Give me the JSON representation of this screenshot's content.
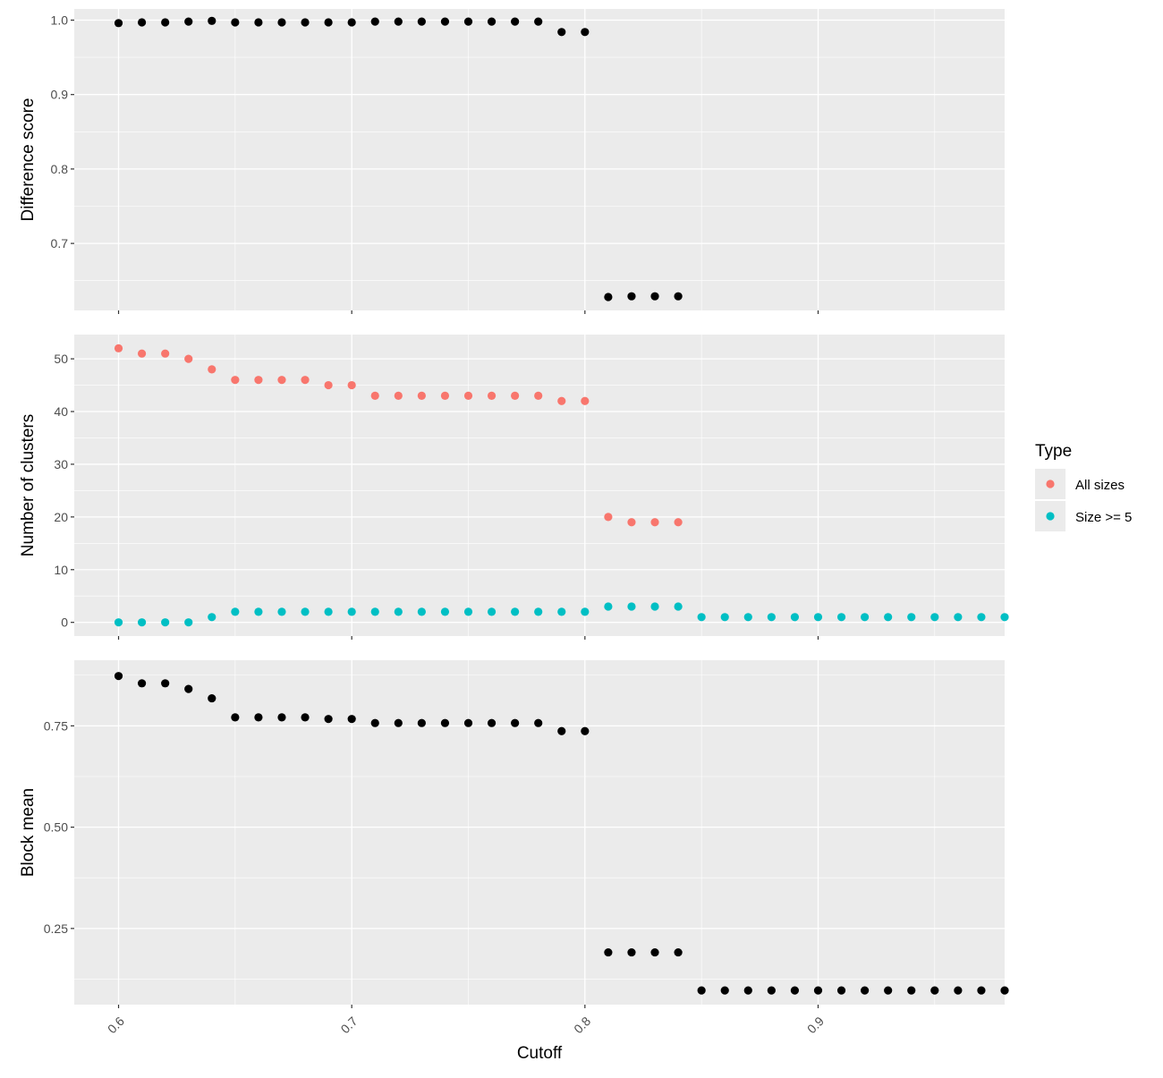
{
  "chart_data": {
    "type": "scatter",
    "x_title": "Cutoff",
    "x_ticks": [
      0.6,
      0.7,
      0.8,
      0.9
    ],
    "x_tick_labels": [
      "0.6",
      "0.7",
      "0.8",
      "0.9"
    ],
    "xlim": [
      0.581,
      0.98
    ],
    "legend": {
      "title": "Type",
      "placement": "right",
      "items": [
        {
          "label": "All sizes",
          "color": "#F8766D"
        },
        {
          "label": "Size >= 5",
          "color": "#00BFC4"
        }
      ]
    },
    "panels": [
      {
        "id": "difference",
        "ylabel": "Difference score",
        "ylim": [
          0.61,
          1.015
        ],
        "y_ticks": [
          0.7,
          0.8,
          0.9,
          1.0
        ],
        "y_tick_labels": [
          "0.7",
          "0.8",
          "0.9",
          "1.0"
        ],
        "series": [
          {
            "color": "#000000",
            "x": [
              0.6,
              0.61,
              0.62,
              0.63,
              0.64,
              0.65,
              0.66,
              0.67,
              0.68,
              0.69,
              0.7,
              0.71,
              0.72,
              0.73,
              0.74,
              0.75,
              0.76,
              0.77,
              0.78,
              0.79,
              0.8,
              0.81,
              0.82,
              0.83,
              0.84
            ],
            "y": [
              0.996,
              0.997,
              0.997,
              0.998,
              0.999,
              0.997,
              0.997,
              0.997,
              0.997,
              0.997,
              0.997,
              0.998,
              0.998,
              0.998,
              0.998,
              0.998,
              0.998,
              0.998,
              0.998,
              0.984,
              0.984,
              0.628,
              0.629,
              0.629,
              0.629
            ]
          }
        ]
      },
      {
        "id": "clusters",
        "ylabel": "Number of clusters",
        "ylim": [
          -2.6,
          54.6
        ],
        "y_ticks": [
          0,
          10,
          20,
          30,
          40,
          50
        ],
        "y_tick_labels": [
          "0",
          "10",
          "20",
          "30",
          "40",
          "50"
        ],
        "series": [
          {
            "name": "All sizes",
            "color": "#F8766D",
            "x": [
              0.6,
              0.61,
              0.62,
              0.63,
              0.64,
              0.65,
              0.66,
              0.67,
              0.68,
              0.69,
              0.7,
              0.71,
              0.72,
              0.73,
              0.74,
              0.75,
              0.76,
              0.77,
              0.78,
              0.79,
              0.8,
              0.81,
              0.82,
              0.83,
              0.84
            ],
            "y": [
              52,
              51,
              51,
              50,
              48,
              46,
              46,
              46,
              46,
              45,
              45,
              43,
              43,
              43,
              43,
              43,
              43,
              43,
              43,
              42,
              42,
              20,
              19,
              19,
              19
            ]
          },
          {
            "name": "Size >= 5",
            "color": "#00BFC4",
            "x": [
              0.6,
              0.61,
              0.62,
              0.63,
              0.64,
              0.65,
              0.66,
              0.67,
              0.68,
              0.69,
              0.7,
              0.71,
              0.72,
              0.73,
              0.74,
              0.75,
              0.76,
              0.77,
              0.78,
              0.79,
              0.8,
              0.81,
              0.82,
              0.83,
              0.84,
              0.85,
              0.86,
              0.87,
              0.88,
              0.89,
              0.9,
              0.91,
              0.92,
              0.93,
              0.94,
              0.95,
              0.96,
              0.97,
              0.98
            ],
            "y": [
              0,
              0,
              0,
              0,
              1,
              2,
              2,
              2,
              2,
              2,
              2,
              2,
              2,
              2,
              2,
              2,
              2,
              2,
              2,
              2,
              2,
              3,
              3,
              3,
              3,
              1,
              1,
              1,
              1,
              1,
              1,
              1,
              1,
              1,
              1,
              1,
              1,
              1,
              1
            ]
          }
        ]
      },
      {
        "id": "blockmean",
        "ylabel": "Block mean",
        "ylim": [
          0.062,
          0.912
        ],
        "y_ticks": [
          0.25,
          0.5,
          0.75
        ],
        "y_tick_labels": [
          "0.25",
          "0.50",
          "0.75"
        ],
        "series": [
          {
            "color": "#000000",
            "x": [
              0.6,
              0.61,
              0.62,
              0.63,
              0.64,
              0.65,
              0.66,
              0.67,
              0.68,
              0.69,
              0.7,
              0.71,
              0.72,
              0.73,
              0.74,
              0.75,
              0.76,
              0.77,
              0.78,
              0.79,
              0.8,
              0.81,
              0.82,
              0.83,
              0.84,
              0.85,
              0.86,
              0.87,
              0.88,
              0.89,
              0.9,
              0.91,
              0.92,
              0.93,
              0.94,
              0.95,
              0.96,
              0.97,
              0.98
            ],
            "y": [
              0.873,
              0.855,
              0.855,
              0.841,
              0.818,
              0.771,
              0.771,
              0.771,
              0.771,
              0.767,
              0.767,
              0.757,
              0.757,
              0.757,
              0.757,
              0.757,
              0.757,
              0.757,
              0.757,
              0.737,
              0.737,
              0.191,
              0.191,
              0.191,
              0.191,
              0.097,
              0.097,
              0.097,
              0.097,
              0.097,
              0.097,
              0.097,
              0.097,
              0.097,
              0.097,
              0.097,
              0.097,
              0.097,
              0.097
            ]
          }
        ]
      }
    ]
  }
}
